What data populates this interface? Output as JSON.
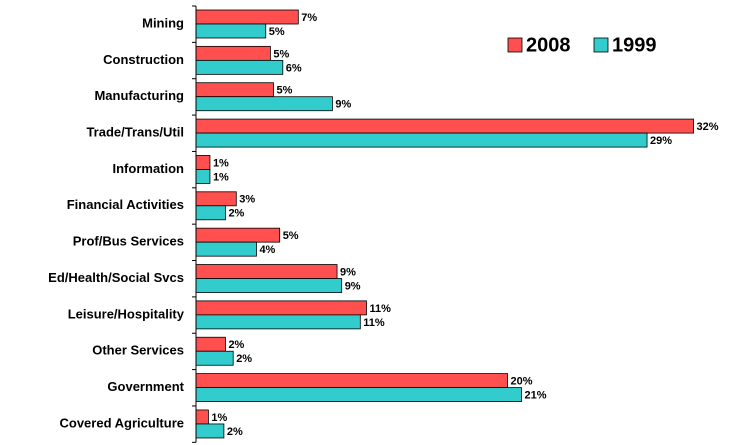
{
  "chart_data": {
    "type": "bar",
    "orientation": "horizontal",
    "categories": [
      "Mining",
      "Construction",
      "Manufacturing",
      "Trade/Trans/Util",
      "Information",
      "Financial Activities",
      "Prof/Bus Services",
      "Ed/Health/Social Svcs",
      "Leisure/Hospitality",
      "Other Services",
      "Government",
      "Covered Agriculture"
    ],
    "series": [
      {
        "name": "2008",
        "color": "#ff4f4f",
        "values": [
          6.6,
          4.8,
          5.0,
          32.1,
          0.9,
          2.6,
          5.4,
          9.1,
          11.0,
          1.9,
          20.1,
          0.8
        ],
        "value_labels": [
          "7%",
          "5%",
          "5%",
          "32%",
          "1%",
          "3%",
          "5%",
          "9%",
          "11%",
          "2%",
          "20%",
          "1%"
        ]
      },
      {
        "name": "1999",
        "color": "#33cccc",
        "values": [
          4.5,
          5.6,
          8.8,
          29.1,
          0.9,
          1.9,
          3.9,
          9.4,
          10.6,
          2.4,
          21.0,
          1.8
        ],
        "value_labels": [
          "5%",
          "6%",
          "9%",
          "29%",
          "1%",
          "2%",
          "4%",
          "9%",
          "11%",
          "2%",
          "21%",
          "2%"
        ]
      }
    ],
    "xlim": [
      0,
      33
    ],
    "legend": "upper right"
  }
}
